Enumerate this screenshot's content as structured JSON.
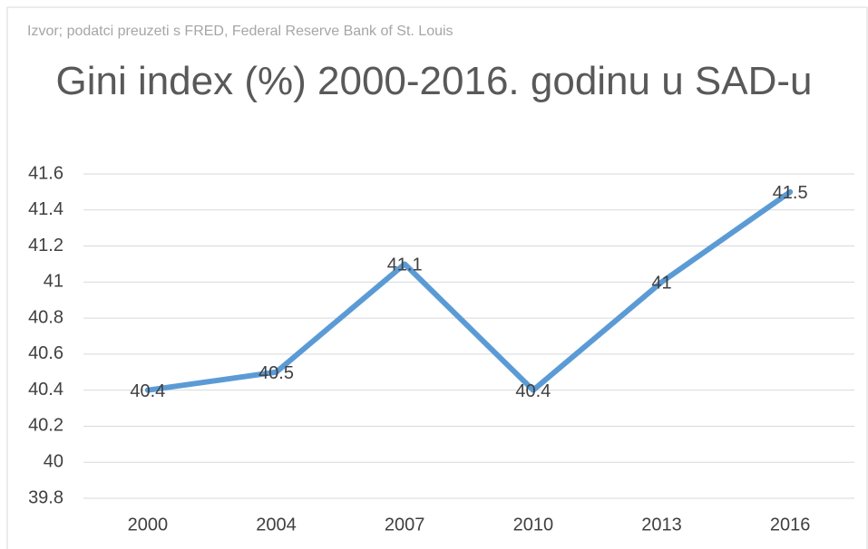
{
  "chart_data": {
    "type": "line",
    "subtitle": "Izvor; podatci preuzeti s FRED, Federal Reserve Bank of St. Louis",
    "title": "Gini index (%) 2000-2016. godinu u SAD-u",
    "categories": [
      "2000",
      "2004",
      "2007",
      "2010",
      "2013",
      "2016"
    ],
    "series": [
      {
        "name": "Gini index",
        "color": "#5b9bd5",
        "values": [
          40.4,
          40.5,
          41.1,
          40.4,
          41,
          41.5
        ]
      }
    ],
    "ylim": [
      39.8,
      41.6
    ],
    "yticks": [
      39.8,
      40,
      40.2,
      40.4,
      40.6,
      40.8,
      41,
      41.2,
      41.4,
      41.6
    ],
    "grid": true
  }
}
